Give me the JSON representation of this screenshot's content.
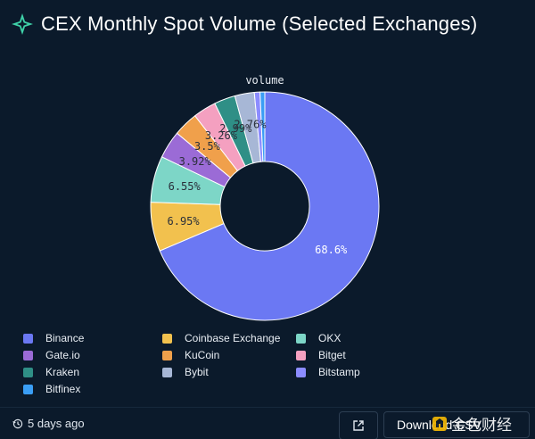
{
  "header": {
    "title": "CEX Monthly Spot Volume (Selected Exchanges)",
    "logo_icon": "sparkle-logo-icon"
  },
  "chart_data": {
    "type": "pie",
    "donut": true,
    "title": "volume",
    "categories": [
      "Binance",
      "Coinbase Exchange",
      "OKX",
      "Gate.io",
      "KuCoin",
      "Bitget",
      "Kraken",
      "Bybit",
      "Bitstamp",
      "Bitfinex"
    ],
    "values": [
      68.6,
      6.95,
      6.55,
      3.92,
      3.5,
      3.26,
      2.99,
      2.76,
      0.8,
      0.67
    ],
    "data_labels": [
      "68.6%",
      "6.95%",
      "6.55%",
      "3.92%",
      "3.5%",
      "3.26%",
      "2.99%",
      "2.76%",
      "",
      ""
    ],
    "colors": [
      "#6b78f3",
      "#f2c14e",
      "#7dd6c7",
      "#9b6bd6",
      "#f0a04b",
      "#f4a0c0",
      "#2f8f86",
      "#a7b7d6",
      "#8c8cff",
      "#3a9ef5"
    ],
    "legend_position": "bottom"
  },
  "legend": {
    "items": [
      {
        "label": "Binance",
        "color": "#6b78f3"
      },
      {
        "label": "Coinbase Exchange",
        "color": "#f2c14e"
      },
      {
        "label": "OKX",
        "color": "#7dd6c7"
      },
      {
        "label": "Gate.io",
        "color": "#9b6bd6"
      },
      {
        "label": "KuCoin",
        "color": "#f0a04b"
      },
      {
        "label": "Bitget",
        "color": "#f4a0c0"
      },
      {
        "label": "Kraken",
        "color": "#2f8f86"
      },
      {
        "label": "Bybit",
        "color": "#a7b7d6"
      },
      {
        "label": "Bitstamp",
        "color": "#8c8cff"
      },
      {
        "label": "Bitfinex",
        "color": "#3a9ef5"
      }
    ]
  },
  "footer": {
    "updated": "5 days ago",
    "updated_icon": "history-clock-icon",
    "open_icon": "external-link-icon",
    "download_label": "Download CSV"
  },
  "watermark": {
    "text": "金色财经",
    "icon": "golden-logo-icon"
  },
  "colors": {
    "background": "#0b1a2b",
    "accent": "#3fd1a8"
  }
}
